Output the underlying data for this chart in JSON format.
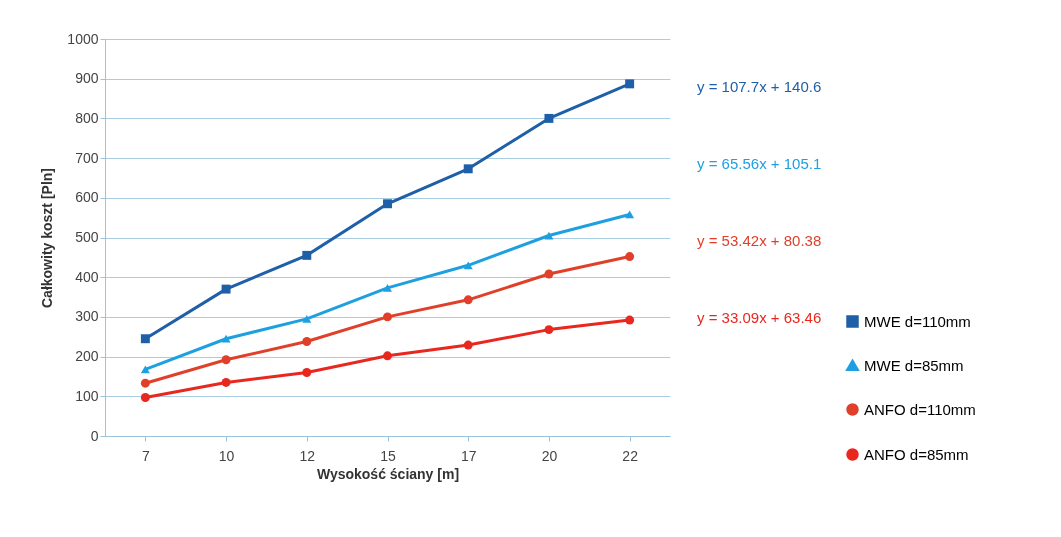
{
  "chart_data": {
    "type": "line",
    "xlabel": "Wysokość ściany [m]",
    "ylabel": "Całkowity koszt [Pln]",
    "categories": [
      "7",
      "10",
      "12",
      "15",
      "17",
      "20",
      "22"
    ],
    "ylim": [
      0,
      1000
    ],
    "yticks": [
      0,
      100,
      200,
      300,
      400,
      500,
      600,
      700,
      800,
      900,
      {
        "value": 1000,
        "label": "1000"
      }
    ],
    "grid": "y",
    "legend": "right",
    "series": [
      {
        "name": "MWE d=110mm",
        "color": "#1f5fa8",
        "marker": "square",
        "values": [
          245,
          370,
          455,
          585,
          673,
          800,
          887
        ]
      },
      {
        "name": "MWE d=85mm",
        "color": "#1ea0e0",
        "marker": "triangle",
        "values": [
          168,
          245,
          295,
          373,
          430,
          505,
          558
        ]
      },
      {
        "name": "ANFO d=110mm",
        "color": "#e0402a",
        "marker": "circle",
        "values": [
          133,
          192,
          238,
          300,
          343,
          408,
          452
        ]
      },
      {
        "name": "ANFO d=85mm",
        "color": "#e8281e",
        "marker": "circle",
        "values": [
          97,
          135,
          160,
          202,
          229,
          268,
          292
        ]
      }
    ],
    "annotations": [
      "y = 107.7x + 140.6",
      "y = 65.56x + 105.1",
      "y = 53.42x + 80.38",
      "y = 33.09x + 63.46"
    ]
  }
}
